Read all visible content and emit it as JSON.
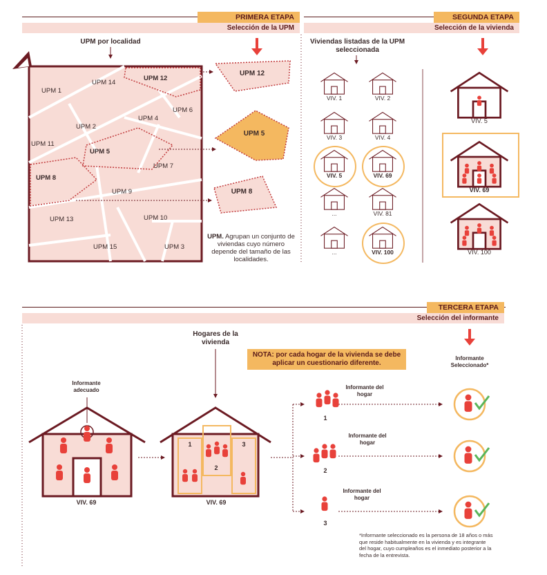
{
  "stage1": {
    "tag": "PRIMERA ETAPA",
    "subtitle": "Selección de la UPM",
    "map_label": "UPM por localidad",
    "upms": [
      "UPM 1",
      "UPM 14",
      "UPM 12",
      "UPM 6",
      "UPM 2",
      "UPM 4",
      "UPM 11",
      "UPM 5",
      "UPM 7",
      "UPM 8",
      "UPM 9",
      "UPM 13",
      "UPM 10",
      "UPM 15",
      "UPM 3"
    ],
    "extracted": [
      "UPM 12",
      "UPM 5",
      "UPM 8"
    ],
    "note_bold": "UPM.",
    "note_text": " Agrupan un conjunto de viviendas cuyo número depende del tamaño de las localidades."
  },
  "stage2": {
    "tag": "SEGUNDA ETAPA",
    "subtitle": "Selección de la vivienda",
    "list_label": "Viviendas listadas de la UPM seleccionada",
    "houses": [
      "VIV. 1",
      "VIV. 2",
      "VIV. 3",
      "VIV. 4",
      "VIV. 5",
      "VIV. 69",
      "...",
      "VIV. 81",
      "...",
      "VIV. 100"
    ],
    "selected": [
      "VIV. 5",
      "VIV. 69",
      "VIV. 100"
    ]
  },
  "stage3": {
    "tag": "TERCERA ETAPA",
    "subtitle": "Selección del informante",
    "hogares_label": "Hogares de la vivienda",
    "nota": "NOTA: por cada hogar de la vivienda se debe aplicar un cuestionario diferente.",
    "informante_adecuado": "Informante adecuado",
    "viv_label": "VIV. 69",
    "hogar_nums": [
      "1",
      "2",
      "3"
    ],
    "informante_hogar": "Informante del hogar",
    "selected_header": "Informante Seleccionado*",
    "footnote": "*Informante seleccionado es la persona de 18 años o más que reside habitualmente en la vivienda y es integrante del hogar, cuyo cumpleaños es el inmediato posterior a la fecha de la entrevista."
  },
  "colors": {
    "dark": "#6b1a22",
    "red": "#e8413a",
    "pink": "#f8dcd6",
    "orange": "#f4b860",
    "green": "#5ab55a"
  }
}
